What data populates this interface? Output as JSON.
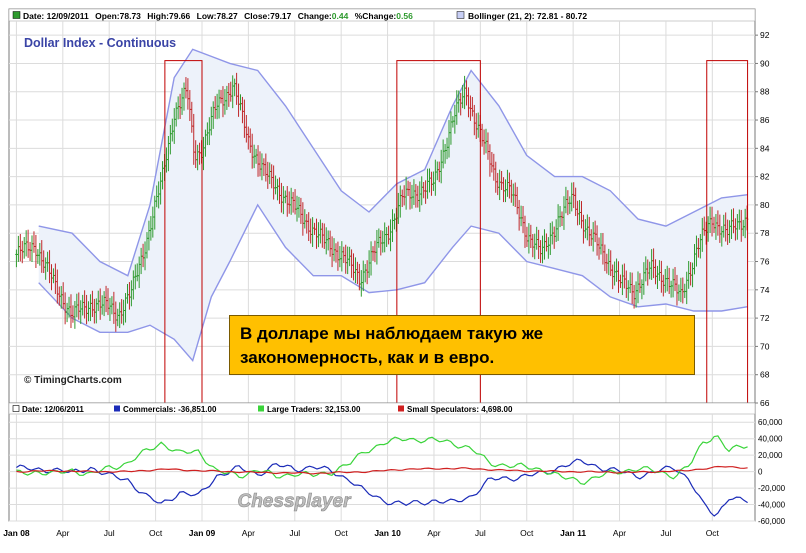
{
  "chart_data": [
    {
      "type": "candlestick",
      "title": "Dollar Index - Continuous",
      "header": {
        "date_label": "Date: 12/09/2011",
        "open_label": "Open:78.73",
        "high_label": "High:79.66",
        "low_label": "Low:78.27",
        "close_label": "Close:79.17",
        "change_label": "Change:",
        "change_value": "0.44",
        "pct_label": "%Change:",
        "pct_value": "0.56",
        "bollinger_label": "Bollinger (21, 2): 72.81 - 80.72"
      },
      "ylim": [
        66,
        93
      ],
      "y_ticks": [
        66,
        68,
        70,
        72,
        74,
        76,
        78,
        80,
        82,
        84,
        86,
        88,
        90,
        92
      ],
      "x_ticks": [
        "Jan 08",
        "Apr",
        "Jul",
        "Oct",
        "Jan 09",
        "Apr",
        "Jul",
        "Oct",
        "Jan 10",
        "Apr",
        "Jul",
        "Oct",
        "Jan 11",
        "Apr",
        "Jul",
        "Oct"
      ],
      "price_path": [
        [
          2008.0,
          76.5
        ],
        [
          2008.1,
          77.2
        ],
        [
          2008.2,
          74.5
        ],
        [
          2008.3,
          72.2
        ],
        [
          2008.4,
          73.0
        ],
        [
          2008.5,
          72.8
        ],
        [
          2008.55,
          72.3
        ],
        [
          2008.62,
          73.8
        ],
        [
          2008.7,
          77.5
        ],
        [
          2008.78,
          81.5
        ],
        [
          2008.85,
          86.5
        ],
        [
          2008.92,
          88.0
        ],
        [
          2008.96,
          83.5
        ],
        [
          2009.0,
          84.0
        ],
        [
          2009.08,
          87.0
        ],
        [
          2009.17,
          88.5
        ],
        [
          2009.25,
          84.5
        ],
        [
          2009.35,
          82.0
        ],
        [
          2009.45,
          80.5
        ],
        [
          2009.55,
          79.0
        ],
        [
          2009.65,
          77.5
        ],
        [
          2009.75,
          76.5
        ],
        [
          2009.85,
          74.8
        ],
        [
          2009.92,
          76.5
        ],
        [
          2010.0,
          78.0
        ],
        [
          2010.08,
          80.5
        ],
        [
          2010.17,
          81.0
        ],
        [
          2010.25,
          81.5
        ],
        [
          2010.35,
          86.0
        ],
        [
          2010.42,
          88.0
        ],
        [
          2010.5,
          85.0
        ],
        [
          2010.58,
          82.0
        ],
        [
          2010.66,
          81.0
        ],
        [
          2010.75,
          78.0
        ],
        [
          2010.83,
          76.5
        ],
        [
          2010.92,
          79.0
        ],
        [
          2011.0,
          80.5
        ],
        [
          2011.08,
          78.0
        ],
        [
          2011.17,
          76.5
        ],
        [
          2011.25,
          74.5
        ],
        [
          2011.33,
          74.0
        ],
        [
          2011.42,
          75.5
        ],
        [
          2011.5,
          74.8
        ],
        [
          2011.58,
          73.5
        ],
        [
          2011.67,
          77.0
        ],
        [
          2011.75,
          79.0
        ],
        [
          2011.83,
          78.0
        ],
        [
          2011.94,
          79.17
        ]
      ],
      "bollinger_upper": [
        [
          2008.12,
          78.5
        ],
        [
          2008.3,
          78.0
        ],
        [
          2008.45,
          76.0
        ],
        [
          2008.6,
          75.0
        ],
        [
          2008.72,
          80.0
        ],
        [
          2008.85,
          89.0
        ],
        [
          2008.95,
          91.0
        ],
        [
          2009.05,
          90.5
        ],
        [
          2009.15,
          90.0
        ],
        [
          2009.3,
          89.5
        ],
        [
          2009.45,
          87.0
        ],
        [
          2009.6,
          84.0
        ],
        [
          2009.75,
          81.0
        ],
        [
          2009.9,
          79.5
        ],
        [
          2010.05,
          81.5
        ],
        [
          2010.2,
          82.5
        ],
        [
          2010.35,
          87.0
        ],
        [
          2010.45,
          89.5
        ],
        [
          2010.6,
          87.0
        ],
        [
          2010.75,
          83.5
        ],
        [
          2010.9,
          82.0
        ],
        [
          2011.05,
          82.0
        ],
        [
          2011.2,
          81.0
        ],
        [
          2011.35,
          79.0
        ],
        [
          2011.5,
          78.5
        ],
        [
          2011.65,
          79.5
        ],
        [
          2011.8,
          80.5
        ],
        [
          2011.94,
          80.72
        ]
      ],
      "bollinger_lower": [
        [
          2008.12,
          74.5
        ],
        [
          2008.3,
          72.0
        ],
        [
          2008.45,
          71.0
        ],
        [
          2008.6,
          71.0
        ],
        [
          2008.72,
          71.5
        ],
        [
          2008.85,
          70.5
        ],
        [
          2008.95,
          69.0
        ],
        [
          2009.05,
          73.5
        ],
        [
          2009.15,
          76.0
        ],
        [
          2009.3,
          80.0
        ],
        [
          2009.45,
          77.0
        ],
        [
          2009.6,
          75.0
        ],
        [
          2009.75,
          75.0
        ],
        [
          2009.9,
          73.8
        ],
        [
          2010.05,
          74.0
        ],
        [
          2010.2,
          74.5
        ],
        [
          2010.35,
          77.0
        ],
        [
          2010.45,
          78.5
        ],
        [
          2010.6,
          78.0
        ],
        [
          2010.75,
          76.0
        ],
        [
          2010.9,
          75.5
        ],
        [
          2011.05,
          75.0
        ],
        [
          2011.2,
          73.5
        ],
        [
          2011.35,
          72.8
        ],
        [
          2011.5,
          73.0
        ],
        [
          2011.65,
          72.5
        ],
        [
          2011.8,
          72.5
        ],
        [
          2011.94,
          72.81
        ]
      ],
      "highlight_ranges": [
        [
          2008.8,
          2009.0
        ],
        [
          2010.05,
          2010.5
        ],
        [
          2011.72,
          2011.94
        ]
      ],
      "watermark": "© TimingCharts.com",
      "callout_lines": [
        "В долларе мы наблюдаем такую же",
        "закономерность, как и в евро."
      ],
      "colors": {
        "up": "#2e9a2e",
        "down": "#c0282a",
        "bollinger": "#8f96e8",
        "band_fill": "#edf2fa",
        "highlight": "#c00000",
        "callout": "#ffc000"
      }
    },
    {
      "type": "line",
      "header": {
        "date_label": "Date: 12/06/2011",
        "commercials_label": "Commercials: -36,851.00",
        "large_label": "Large Traders: 32,153.00",
        "small_label": "Small Speculators: 4,698.00"
      },
      "ylim": [
        -60000,
        70000
      ],
      "y_ticks": [
        -60000,
        -40000,
        -20000,
        0,
        20000,
        40000,
        60000
      ],
      "y_tick_labels": [
        "-60,000",
        "-40,000",
        "-20,000",
        "0",
        "20,000",
        "40,000",
        "60,000"
      ],
      "series": [
        {
          "name": "Commercials",
          "color": "#1b2bb8",
          "points": [
            [
              2008.0,
              5000
            ],
            [
              2008.1,
              2000
            ],
            [
              2008.2,
              3000
            ],
            [
              2008.3,
              -2000
            ],
            [
              2008.4,
              5000
            ],
            [
              2008.5,
              -5000
            ],
            [
              2008.6,
              -10000
            ],
            [
              2008.7,
              -30000
            ],
            [
              2008.78,
              -40000
            ],
            [
              2008.88,
              -25000
            ],
            [
              2008.98,
              -30000
            ],
            [
              2009.08,
              -5000
            ],
            [
              2009.2,
              4000
            ],
            [
              2009.3,
              -3000
            ],
            [
              2009.4,
              8000
            ],
            [
              2009.5,
              3000
            ],
            [
              2009.6,
              6000
            ],
            [
              2009.7,
              0
            ],
            [
              2009.8,
              -10000
            ],
            [
              2009.88,
              -25000
            ],
            [
              2009.98,
              -35000
            ],
            [
              2010.1,
              -40000
            ],
            [
              2010.25,
              -35000
            ],
            [
              2010.35,
              -38000
            ],
            [
              2010.45,
              -30000
            ],
            [
              2010.55,
              -10000
            ],
            [
              2010.65,
              -8000
            ],
            [
              2010.75,
              -5000
            ],
            [
              2010.85,
              -2000
            ],
            [
              2010.95,
              8000
            ],
            [
              2011.05,
              12000
            ],
            [
              2011.15,
              5000
            ],
            [
              2011.25,
              0
            ],
            [
              2011.35,
              -5000
            ],
            [
              2011.45,
              0
            ],
            [
              2011.55,
              5000
            ],
            [
              2011.63,
              -10000
            ],
            [
              2011.7,
              -40000
            ],
            [
              2011.77,
              -55000
            ],
            [
              2011.84,
              -30000
            ],
            [
              2011.94,
              -36851
            ]
          ]
        },
        {
          "name": "Large Traders",
          "color": "#3ad43a",
          "points": [
            [
              2008.0,
              -2000
            ],
            [
              2008.1,
              0
            ],
            [
              2008.2,
              -3000
            ],
            [
              2008.3,
              2000
            ],
            [
              2008.4,
              -4000
            ],
            [
              2008.5,
              5000
            ],
            [
              2008.6,
              10000
            ],
            [
              2008.7,
              25000
            ],
            [
              2008.78,
              35000
            ],
            [
              2008.88,
              22000
            ],
            [
              2008.98,
              25000
            ],
            [
              2009.08,
              0
            ],
            [
              2009.2,
              -5000
            ],
            [
              2009.3,
              2000
            ],
            [
              2009.4,
              -6000
            ],
            [
              2009.5,
              -2000
            ],
            [
              2009.6,
              -5000
            ],
            [
              2009.7,
              0
            ],
            [
              2009.8,
              10000
            ],
            [
              2009.88,
              25000
            ],
            [
              2009.98,
              35000
            ],
            [
              2010.1,
              40000
            ],
            [
              2010.25,
              38000
            ],
            [
              2010.35,
              35000
            ],
            [
              2010.45,
              28000
            ],
            [
              2010.55,
              10000
            ],
            [
              2010.65,
              8000
            ],
            [
              2010.75,
              5000
            ],
            [
              2010.85,
              2000
            ],
            [
              2010.95,
              -8000
            ],
            [
              2011.05,
              -12000
            ],
            [
              2011.15,
              -5000
            ],
            [
              2011.25,
              0
            ],
            [
              2011.35,
              4000
            ],
            [
              2011.45,
              0
            ],
            [
              2011.55,
              -5000
            ],
            [
              2011.63,
              8000
            ],
            [
              2011.7,
              35000
            ],
            [
              2011.77,
              45000
            ],
            [
              2011.84,
              25000
            ],
            [
              2011.94,
              32153
            ]
          ]
        },
        {
          "name": "Small Speculators",
          "color": "#d02020",
          "points": [
            [
              2008.0,
              0
            ],
            [
              2008.2,
              1000
            ],
            [
              2008.4,
              0
            ],
            [
              2008.6,
              0
            ],
            [
              2008.8,
              3000
            ],
            [
              2009.0,
              1000
            ],
            [
              2009.3,
              -1000
            ],
            [
              2009.6,
              -2000
            ],
            [
              2009.9,
              0
            ],
            [
              2010.1,
              3000
            ],
            [
              2010.4,
              4000
            ],
            [
              2010.7,
              1000
            ],
            [
              2011.0,
              0
            ],
            [
              2011.3,
              -1000
            ],
            [
              2011.6,
              1000
            ],
            [
              2011.8,
              6000
            ],
            [
              2011.94,
              4698
            ]
          ]
        }
      ]
    }
  ],
  "footer": {
    "brand": "Chessplayer"
  }
}
